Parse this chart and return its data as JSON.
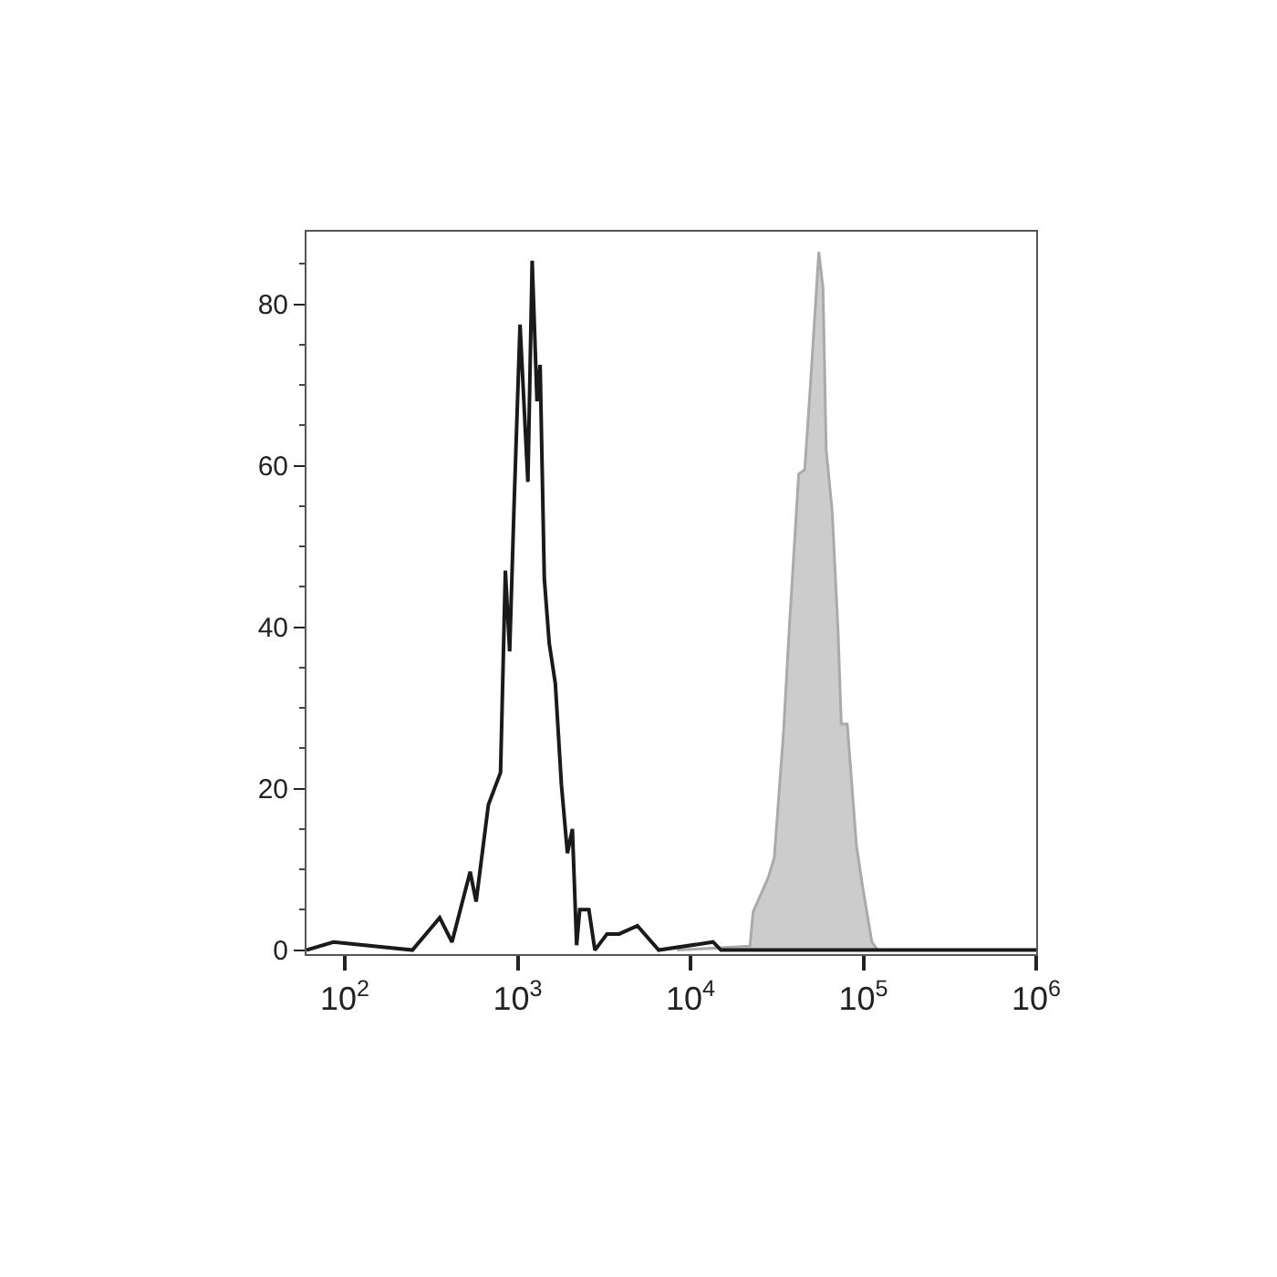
{
  "chart_data": {
    "type": "line",
    "xlim": [
      60,
      1000000
    ],
    "ylim": [
      -0.5,
      89
    ],
    "log": "x",
    "xticks": [
      {
        "value": 100,
        "label": "10$^{2}$"
      },
      {
        "value": 1000,
        "label": "10$^{3}$"
      },
      {
        "value": 10000,
        "label": "10$^{4}$"
      },
      {
        "value": 100000,
        "label": "10$^{5}$"
      },
      {
        "value": 1000000,
        "label": "10$^{6}$"
      }
    ],
    "yticks": [
      0,
      20,
      40,
      60,
      80
    ],
    "series": [
      {
        "type": "area",
        "color": "#aaaaaa",
        "x": [
          8360,
          22080,
          23010,
          28180,
          30550,
          34510,
          37430,
          42270,
          45810,
          49650,
          55260,
          58440,
          60930,
          65960,
          71450,
          74500,
          80700,
          91200,
          99100,
          112000,
          121000
        ],
        "values": [
          0,
          0.5,
          4.7,
          9,
          11.5,
          27,
          40.5,
          59,
          59.5,
          70.7,
          86.5,
          82,
          62,
          54.5,
          39.4,
          28,
          28,
          13,
          7.8,
          1,
          0
        ]
      },
      {
        "color": "#1a1a1a",
        "x": [
          60,
          86,
          246,
          354,
          417,
          531,
          575,
          677,
          734,
          796,
          849,
          899,
          953,
          1032,
          1146,
          1213,
          1294,
          1349,
          1426,
          1523,
          1652,
          1791,
          1941,
          2073,
          2193,
          2285,
          2582,
          2798,
          3289,
          3867,
          4929,
          6546,
          13500,
          15000,
          1000000
        ],
        "values": [
          0,
          1,
          0,
          4,
          1,
          9.7,
          6,
          18,
          20,
          22,
          47,
          37,
          55,
          77.5,
          58,
          85.4,
          68,
          72.5,
          46,
          38,
          33,
          20.5,
          12,
          15,
          0.6,
          5,
          5,
          0,
          2,
          2,
          3,
          0,
          1,
          0,
          0
        ]
      }
    ]
  }
}
